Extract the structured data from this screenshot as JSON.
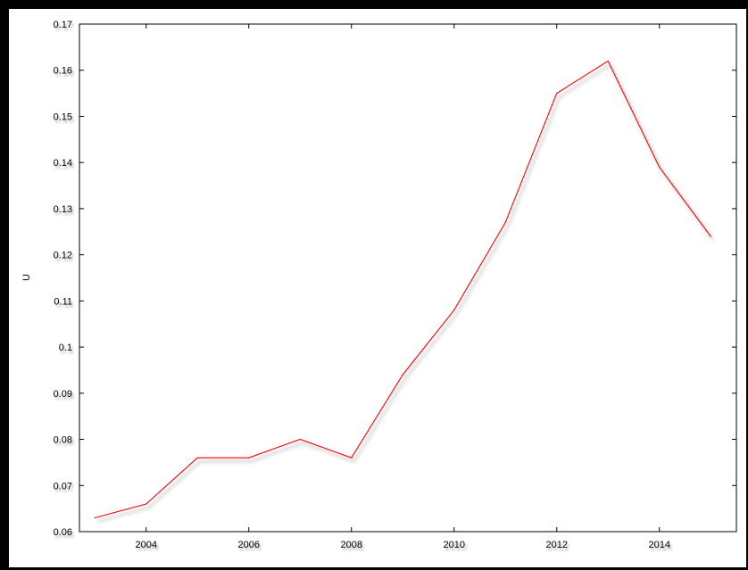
{
  "chart_data": {
    "type": "line",
    "title": "",
    "xlabel": "",
    "ylabel": "U",
    "xlim": [
      2002.7,
      2015.5
    ],
    "ylim": [
      0.06,
      0.17
    ],
    "x_ticks": [
      2004,
      2006,
      2008,
      2010,
      2012,
      2014
    ],
    "x_tick_labels": [
      "2004",
      "2006",
      "2008",
      "2010",
      "2012",
      "2014"
    ],
    "y_ticks": [
      0.06,
      0.07,
      0.08,
      0.09,
      0.1,
      0.11,
      0.12,
      0.13,
      0.14,
      0.15,
      0.16,
      0.17
    ],
    "y_tick_labels": [
      "0.06",
      "0.07",
      "0.08",
      "0.09",
      "0.1",
      "0.11",
      "0.12",
      "0.13",
      "0.14",
      "0.15",
      "0.16",
      "0.17"
    ],
    "grid": false,
    "series": [
      {
        "color": "#ff0000",
        "x": [
          2003,
          2004,
          2005,
          2006,
          2007,
          2008,
          2009,
          2010,
          2011,
          2012,
          2013,
          2014,
          2015
        ],
        "y": [
          0.063,
          0.066,
          0.076,
          0.076,
          0.08,
          0.076,
          0.094,
          0.108,
          0.127,
          0.155,
          0.162,
          0.139,
          0.124
        ]
      }
    ]
  }
}
